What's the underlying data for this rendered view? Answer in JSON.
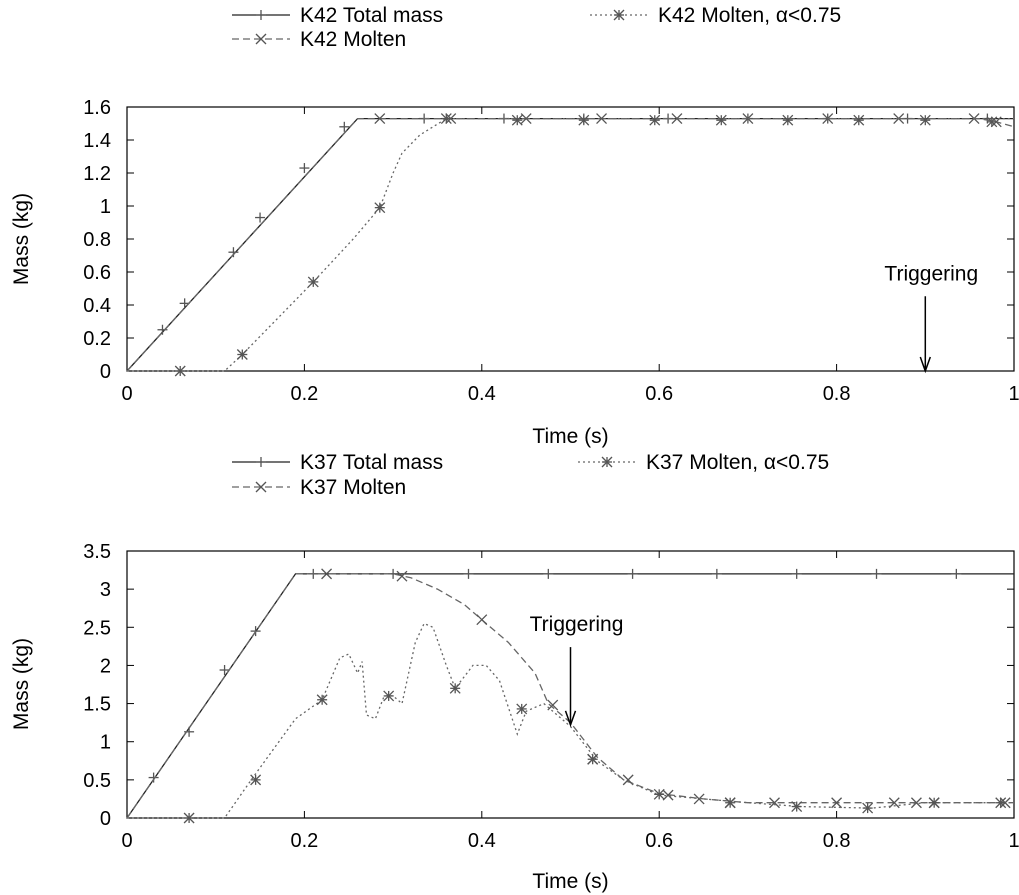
{
  "chart_data": [
    {
      "type": "line",
      "xlabel": "Time (s)",
      "ylabel": "Mass (kg)",
      "xlim": [
        0,
        1
      ],
      "ylim": [
        0,
        1.6
      ],
      "xticks": [
        "0",
        "0.2",
        "0.4",
        "0.6",
        "0.8",
        "1"
      ],
      "yticks": [
        "0",
        "0.2",
        "0.4",
        "0.6",
        "0.8",
        "1",
        "1.2",
        "1.4",
        "1.6"
      ],
      "grid": false,
      "legend_position": "top",
      "annotation": {
        "text": "Triggering",
        "x": 0.9,
        "y_text": 0.55,
        "y_arrow_end": 0.0
      },
      "series": [
        {
          "name": "K42 Total mass",
          "style": "solid",
          "marker": "+",
          "points": [
            [
              0,
              0
            ],
            [
              0.26,
              1.53
            ],
            [
              1.0,
              1.53
            ]
          ],
          "markers": [
            [
              0.04,
              0.25
            ],
            [
              0.065,
              0.41
            ],
            [
              0.12,
              0.72
            ],
            [
              0.15,
              0.93
            ],
            [
              0.2,
              1.23
            ],
            [
              0.245,
              1.48
            ],
            [
              0.335,
              1.53
            ],
            [
              0.425,
              1.53
            ],
            [
              0.515,
              1.53
            ],
            [
              0.61,
              1.53
            ],
            [
              0.7,
              1.53
            ],
            [
              0.79,
              1.53
            ],
            [
              0.88,
              1.53
            ],
            [
              0.97,
              1.53
            ]
          ]
        },
        {
          "name": "K42 Molten",
          "style": "dashed",
          "marker": "x",
          "points": [
            [
              0,
              0
            ],
            [
              0.26,
              1.53
            ],
            [
              0.96,
              1.53
            ],
            [
              0.98,
              1.51
            ],
            [
              1.0,
              1.48
            ]
          ],
          "markers": [
            [
              0.285,
              1.53
            ],
            [
              0.365,
              1.53
            ],
            [
              0.45,
              1.53
            ],
            [
              0.535,
              1.53
            ],
            [
              0.62,
              1.53
            ],
            [
              0.7,
              1.53
            ],
            [
              0.79,
              1.53
            ],
            [
              0.87,
              1.53
            ],
            [
              0.955,
              1.53
            ],
            [
              0.98,
              1.51
            ]
          ]
        },
        {
          "name": "K42 Molten, α<0.75",
          "style": "dotted",
          "marker": "*",
          "points": [
            [
              0,
              0
            ],
            [
              0.11,
              0.0
            ],
            [
              0.13,
              0.1
            ],
            [
              0.21,
              0.54
            ],
            [
              0.255,
              0.8
            ],
            [
              0.285,
              0.99
            ],
            [
              0.3,
              1.2
            ],
            [
              0.31,
              1.32
            ],
            [
              0.33,
              1.43
            ],
            [
              0.36,
              1.53
            ],
            [
              1.0,
              1.53
            ]
          ],
          "markers": [
            [
              0.06,
              0.0
            ],
            [
              0.13,
              0.1
            ],
            [
              0.21,
              0.54
            ],
            [
              0.285,
              0.99
            ],
            [
              0.36,
              1.53
            ],
            [
              0.44,
              1.52
            ],
            [
              0.515,
              1.52
            ],
            [
              0.595,
              1.52
            ],
            [
              0.67,
              1.52
            ],
            [
              0.745,
              1.52
            ],
            [
              0.825,
              1.52
            ],
            [
              0.9,
              1.52
            ],
            [
              0.975,
              1.51
            ]
          ]
        }
      ]
    },
    {
      "type": "line",
      "xlabel": "Time (s)",
      "ylabel": "Mass (kg)",
      "xlim": [
        0,
        1
      ],
      "ylim": [
        0,
        3.5
      ],
      "xticks": [
        "0",
        "0.2",
        "0.4",
        "0.6",
        "0.8",
        "1"
      ],
      "yticks": [
        "0",
        "0.5",
        "1",
        "1.5",
        "2",
        "2.5",
        "3",
        "3.5"
      ],
      "grid": false,
      "legend_position": "top",
      "annotation": {
        "text": "Triggering",
        "x": 0.5,
        "y_text": 2.45,
        "y_arrow_end": 1.22
      },
      "series": [
        {
          "name": "K37 Total mass",
          "style": "solid",
          "marker": "+",
          "points": [
            [
              0,
              0
            ],
            [
              0.19,
              3.2
            ],
            [
              1.0,
              3.2
            ]
          ],
          "markers": [
            [
              0.03,
              0.53
            ],
            [
              0.07,
              1.13
            ],
            [
              0.11,
              1.94
            ],
            [
              0.145,
              2.45
            ],
            [
              0.21,
              3.2
            ],
            [
              0.3,
              3.2
            ],
            [
              0.385,
              3.2
            ],
            [
              0.475,
              3.2
            ],
            [
              0.57,
              3.2
            ],
            [
              0.665,
              3.2
            ],
            [
              0.755,
              3.2
            ],
            [
              0.845,
              3.2
            ],
            [
              0.935,
              3.2
            ]
          ]
        },
        {
          "name": "K37 Molten",
          "style": "dashed",
          "marker": "x",
          "points": [
            [
              0,
              0
            ],
            [
              0.19,
              3.2
            ],
            [
              0.3,
              3.2
            ],
            [
              0.32,
              3.15
            ],
            [
              0.35,
              3.0
            ],
            [
              0.38,
              2.8
            ],
            [
              0.4,
              2.6
            ],
            [
              0.43,
              2.3
            ],
            [
              0.46,
              1.9
            ],
            [
              0.475,
              1.5
            ],
            [
              0.5,
              1.25
            ],
            [
              0.53,
              0.8
            ],
            [
              0.56,
              0.5
            ],
            [
              0.6,
              0.32
            ],
            [
              0.65,
              0.25
            ],
            [
              0.7,
              0.2
            ],
            [
              0.8,
              0.2
            ],
            [
              0.9,
              0.2
            ],
            [
              1.0,
              0.2
            ]
          ],
          "markers": [
            [
              0.225,
              3.2
            ],
            [
              0.31,
              3.17
            ],
            [
              0.4,
              2.6
            ],
            [
              0.48,
              1.48
            ],
            [
              0.525,
              0.77
            ],
            [
              0.565,
              0.5
            ],
            [
              0.61,
              0.3
            ],
            [
              0.645,
              0.25
            ],
            [
              0.68,
              0.2
            ],
            [
              0.73,
              0.2
            ],
            [
              0.8,
              0.2
            ],
            [
              0.865,
              0.2
            ],
            [
              0.89,
              0.2
            ],
            [
              0.91,
              0.2
            ],
            [
              0.99,
              0.2
            ]
          ]
        },
        {
          "name": "K37 Molten, α<0.75",
          "style": "dotted",
          "marker": "*",
          "points": [
            [
              0,
              0
            ],
            [
              0.11,
              0.0
            ],
            [
              0.14,
              0.5
            ],
            [
              0.19,
              1.3
            ],
            [
              0.22,
              1.55
            ],
            [
              0.24,
              2.1
            ],
            [
              0.25,
              2.15
            ],
            [
              0.26,
              1.9
            ],
            [
              0.265,
              2.05
            ],
            [
              0.27,
              1.35
            ],
            [
              0.28,
              1.3
            ],
            [
              0.29,
              1.6
            ],
            [
              0.3,
              1.6
            ],
            [
              0.31,
              1.5
            ],
            [
              0.325,
              2.3
            ],
            [
              0.335,
              2.55
            ],
            [
              0.345,
              2.5
            ],
            [
              0.36,
              2.0
            ],
            [
              0.37,
              1.7
            ],
            [
              0.38,
              1.85
            ],
            [
              0.39,
              2.0
            ],
            [
              0.405,
              2.0
            ],
            [
              0.42,
              1.8
            ],
            [
              0.44,
              1.1
            ],
            [
              0.45,
              1.4
            ],
            [
              0.47,
              1.5
            ],
            [
              0.49,
              1.3
            ],
            [
              0.5,
              1.2
            ],
            [
              0.53,
              0.75
            ],
            [
              0.56,
              0.5
            ],
            [
              0.6,
              0.3
            ],
            [
              0.65,
              0.25
            ],
            [
              0.7,
              0.2
            ],
            [
              0.76,
              0.15
            ],
            [
              0.84,
              0.13
            ],
            [
              0.9,
              0.2
            ],
            [
              1.0,
              0.2
            ]
          ],
          "markers": [
            [
              0.07,
              0.0
            ],
            [
              0.145,
              0.5
            ],
            [
              0.22,
              1.55
            ],
            [
              0.295,
              1.6
            ],
            [
              0.37,
              1.7
            ],
            [
              0.445,
              1.43
            ],
            [
              0.525,
              0.77
            ],
            [
              0.6,
              0.31
            ],
            [
              0.68,
              0.2
            ],
            [
              0.755,
              0.15
            ],
            [
              0.835,
              0.13
            ],
            [
              0.91,
              0.2
            ],
            [
              0.985,
              0.2
            ]
          ]
        }
      ]
    }
  ]
}
